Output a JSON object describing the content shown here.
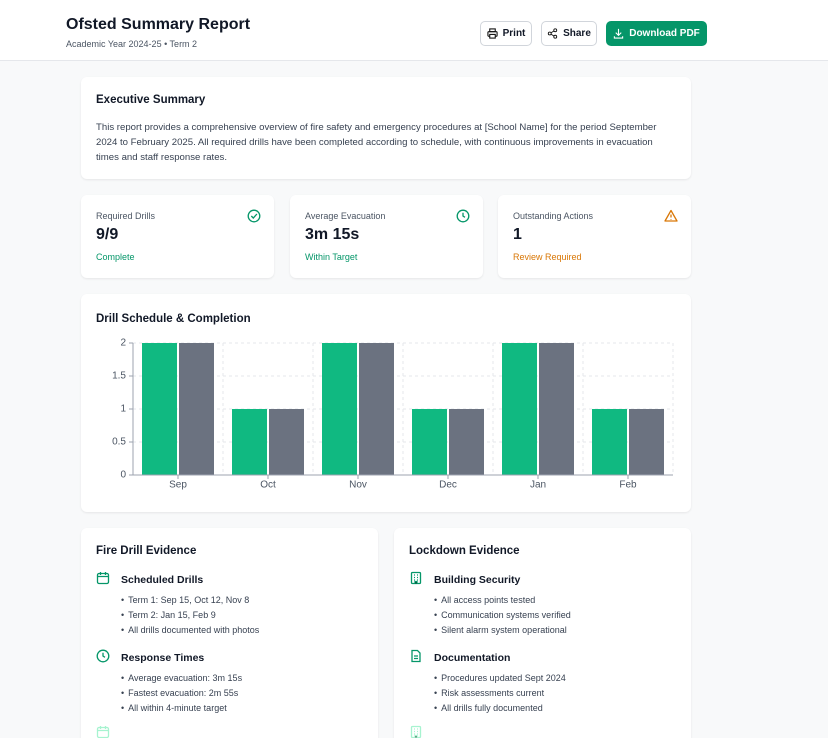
{
  "header": {
    "title": "Ofsted Summary Report",
    "subtitle": "Academic Year 2024-25 • Term 2",
    "buttons": [
      "Print",
      "Share",
      "Download PDF"
    ]
  },
  "executive_summary": {
    "title": "Executive Summary",
    "text": "This report provides a comprehensive overview of fire safety and emergency procedures at [School Name] for the period September 2024 to February 2025. All required drills have been completed according to schedule, with continuous improvements in evacuation times and staff response rates."
  },
  "stats": [
    {
      "label": "Required Drills",
      "value": "9/9",
      "status": "Complete"
    },
    {
      "label": "Average Evacuation",
      "value": "3m 15s",
      "status": "Within Target"
    },
    {
      "label": "Outstanding Actions",
      "value": "1",
      "status": "Review Required"
    }
  ],
  "chart_data": {
    "type": "bar",
    "title": "Drill Schedule & Completion",
    "categories": [
      "Sep",
      "Oct",
      "Nov",
      "Dec",
      "Jan",
      "Feb"
    ],
    "series": [
      {
        "color": "#10b981",
        "values": [
          2,
          1,
          2,
          1,
          2,
          1
        ]
      },
      {
        "color": "#6b7280",
        "values": [
          2,
          1,
          2,
          1,
          2,
          1
        ]
      }
    ],
    "ylim": [
      0,
      2
    ],
    "yticks": [
      0,
      0.5,
      1,
      1.5,
      2
    ],
    "grid": true
  },
  "evidence": [
    {
      "title": "Fire Drill Evidence",
      "sections": [
        {
          "heading": "Scheduled Drills",
          "items": [
            "Term 1: Sep 15, Oct 12, Nov 8",
            "Term 2: Jan 15, Feb 9",
            "All drills documented with photos"
          ]
        },
        {
          "heading": "Response Times",
          "items": [
            "Average evacuation: 3m 15s",
            "Fastest evacuation: 2m 55s",
            "All within 4-minute target"
          ]
        }
      ]
    },
    {
      "title": "Lockdown Evidence",
      "sections": [
        {
          "heading": "Building Security",
          "items": [
            "All access points tested",
            "Communication systems verified",
            "Silent alarm system operational"
          ]
        },
        {
          "heading": "Documentation",
          "items": [
            "Procedures updated Sept 2024",
            "Risk assessments current",
            "All drills fully documented"
          ]
        }
      ]
    }
  ]
}
